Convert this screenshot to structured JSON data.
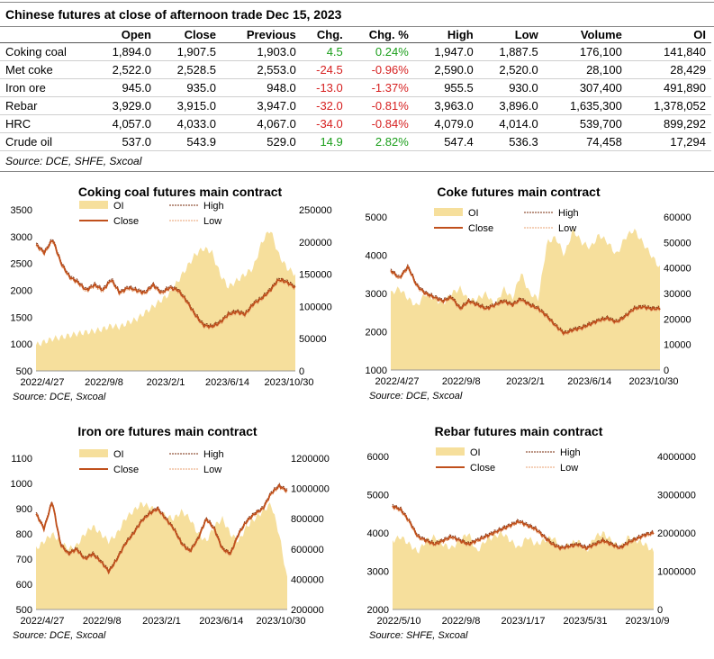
{
  "header": {
    "title": "Chinese futures at close of afternoon trade Dec 15, 2023",
    "source": "Source: DCE, SHFE, Sxcoal"
  },
  "table": {
    "columns": [
      "",
      "Open",
      "Close",
      "Previous",
      "Chg.",
      "Chg. %",
      "High",
      "Low",
      "Volume",
      "OI"
    ],
    "rows": [
      [
        "Coking coal",
        "1,894.0",
        "1,907.5",
        "1,903.0",
        "4.5",
        "0.24%",
        "1,947.0",
        "1,887.5",
        "176,100",
        "141,840"
      ],
      [
        "Met coke",
        "2,522.0",
        "2,528.5",
        "2,553.0",
        "-24.5",
        "-0.96%",
        "2,590.0",
        "2,520.0",
        "28,100",
        "28,429"
      ],
      [
        "Iron ore",
        "945.0",
        "935.0",
        "948.0",
        "-13.0",
        "-1.37%",
        "955.5",
        "930.0",
        "307,400",
        "491,890"
      ],
      [
        "Rebar",
        "3,929.0",
        "3,915.0",
        "3,947.0",
        "-32.0",
        "-0.81%",
        "3,963.0",
        "3,896.0",
        "1,635,300",
        "1,378,052"
      ],
      [
        "HRC",
        "4,057.0",
        "4,033.0",
        "4,067.0",
        "-34.0",
        "-0.84%",
        "4,079.0",
        "4,014.0",
        "539,700",
        "899,292"
      ],
      [
        "Crude oil",
        "537.0",
        "543.9",
        "529.0",
        "14.9",
        "2.82%",
        "547.4",
        "536.3",
        "74,458",
        "17,294"
      ]
    ]
  },
  "colors": {
    "oi_fill": "#f6df9c",
    "close_line": "#c0501c",
    "high_line": "#7a2e0e",
    "low_line": "#e8a070",
    "positive": "#1a9e1a",
    "negative": "#d62020"
  },
  "chart_data": [
    {
      "type": "line",
      "title": "Coking coal futures main contract",
      "source": "Source: DCE, Sxcoal",
      "legend": [
        "OI",
        "High",
        "Close",
        "Low"
      ],
      "legend_position": "top",
      "x_tick_labels": [
        "2022/4/27",
        "2022/9/8",
        "2023/2/1",
        "2023/6/14",
        "2023/10/30"
      ],
      "ylim": [
        500,
        3500
      ],
      "y_ticks": [
        500,
        1000,
        1500,
        2000,
        2500,
        3000,
        3500
      ],
      "y2lim": [
        0,
        250000
      ],
      "y2_ticks": [
        "0",
        "50000",
        "100000",
        "150000",
        "200000",
        "250000"
      ],
      "close": [
        2850,
        2700,
        2950,
        2500,
        2250,
        2150,
        2000,
        2100,
        2000,
        2200,
        1950,
        2050,
        2000,
        1950,
        2100,
        1950,
        2050,
        2000,
        1800,
        1550,
        1350,
        1320,
        1400,
        1550,
        1600,
        1550,
        1750,
        1850,
        2000,
        2200,
        2150,
        2050
      ],
      "oi": [
        40000,
        45000,
        50000,
        52000,
        55000,
        58000,
        60000,
        62000,
        65000,
        70000,
        68000,
        75000,
        80000,
        90000,
        100000,
        110000,
        120000,
        140000,
        160000,
        180000,
        190000,
        185000,
        150000,
        130000,
        140000,
        150000,
        160000,
        200000,
        220000,
        180000,
        160000,
        150000
      ]
    },
    {
      "type": "line",
      "title": "Coke futures main contract",
      "source": "Source: DCE, Sxcoal",
      "legend": [
        "OI",
        "High",
        "Close",
        "Low"
      ],
      "legend_position": "top",
      "x_tick_labels": [
        "2022/4/27",
        "2022/9/8",
        "2023/2/1",
        "2023/6/14",
        "2023/10/30"
      ],
      "ylim": [
        1000,
        5000
      ],
      "y_ticks": [
        1000,
        2000,
        3000,
        4000,
        5000
      ],
      "y2lim": [
        0,
        60000
      ],
      "y2_ticks": [
        "0",
        "10000",
        "20000",
        "30000",
        "40000",
        "50000",
        "60000"
      ],
      "close": [
        3600,
        3400,
        3700,
        3200,
        3000,
        2900,
        2800,
        2900,
        2600,
        2800,
        2700,
        2600,
        2700,
        2800,
        2700,
        2850,
        2700,
        2600,
        2400,
        2150,
        1950,
        2050,
        2100,
        2200,
        2300,
        2350,
        2250,
        2400,
        2600,
        2650,
        2600,
        2600
      ],
      "oi": [
        30000,
        32000,
        28000,
        25000,
        30000,
        28000,
        26000,
        30000,
        32000,
        27000,
        28000,
        30000,
        25000,
        32000,
        28000,
        38000,
        30000,
        28000,
        50000,
        52000,
        45000,
        55000,
        50000,
        48000,
        53000,
        50000,
        45000,
        52000,
        55000,
        50000,
        45000,
        40000
      ]
    },
    {
      "type": "line",
      "title": "Iron ore futures main contract",
      "source": "Source: DCE, Sxcoal",
      "legend": [
        "OI",
        "High",
        "Close",
        "Low"
      ],
      "legend_position": "top",
      "x_tick_labels": [
        "2022/4/27",
        "2022/9/8",
        "2023/2/1",
        "2023/6/14",
        "2023/10/30"
      ],
      "ylim": [
        500,
        1100
      ],
      "y_ticks": [
        500,
        600,
        700,
        800,
        900,
        1000,
        1100
      ],
      "y2lim": [
        200000,
        1200000
      ],
      "y2_ticks": [
        "200000",
        "400000",
        "600000",
        "800000",
        "1000000",
        "1200000"
      ],
      "close": [
        880,
        820,
        930,
        760,
        720,
        740,
        700,
        720,
        690,
        650,
        700,
        760,
        800,
        850,
        880,
        900,
        860,
        820,
        760,
        730,
        780,
        860,
        820,
        740,
        720,
        800,
        850,
        880,
        900,
        960,
        990,
        970
      ],
      "oi": [
        600000,
        650000,
        700000,
        650000,
        600000,
        620000,
        700000,
        750000,
        700000,
        650000,
        700000,
        800000,
        850000,
        900000,
        880000,
        850000,
        820000,
        800000,
        850000,
        800000,
        700000,
        650000,
        750000,
        800000,
        700000,
        650000,
        750000,
        800000,
        850000,
        900000,
        700000,
        400000
      ]
    },
    {
      "type": "line",
      "title": "Rebar futures main contract",
      "source": "Source: SHFE, Sxcoal",
      "legend": [
        "OI",
        "High",
        "Close",
        "Low"
      ],
      "legend_position": "top",
      "x_tick_labels": [
        "2022/5/10",
        "2022/9/8",
        "2023/1/17",
        "2023/5/31",
        "2023/10/9"
      ],
      "ylim": [
        2000,
        6000
      ],
      "y_ticks": [
        2000,
        3000,
        4000,
        5000,
        6000
      ],
      "y2lim": [
        0,
        4000000
      ],
      "y2_ticks": [
        "0",
        "1000000",
        "2000000",
        "3000000",
        "4000000"
      ],
      "close": [
        4700,
        4600,
        4300,
        3900,
        3800,
        3700,
        3800,
        3900,
        3800,
        3700,
        3800,
        3900,
        4000,
        4100,
        4200,
        4300,
        4200,
        4100,
        3900,
        3700,
        3600,
        3650,
        3700,
        3600,
        3700,
        3800,
        3700,
        3600,
        3750,
        3850,
        3950,
        4000
      ],
      "oi": [
        1800000,
        1900000,
        1700000,
        1500000,
        1800000,
        1900000,
        1700000,
        1600000,
        1800000,
        2000000,
        1500000,
        1800000,
        1900000,
        2000000,
        1800000,
        1600000,
        1900000,
        1700000,
        1800000,
        1900000,
        1600000,
        1700000,
        1800000,
        1500000,
        1900000,
        2000000,
        1800000,
        1600000,
        1900000,
        1800000,
        1700000,
        1500000
      ]
    }
  ]
}
